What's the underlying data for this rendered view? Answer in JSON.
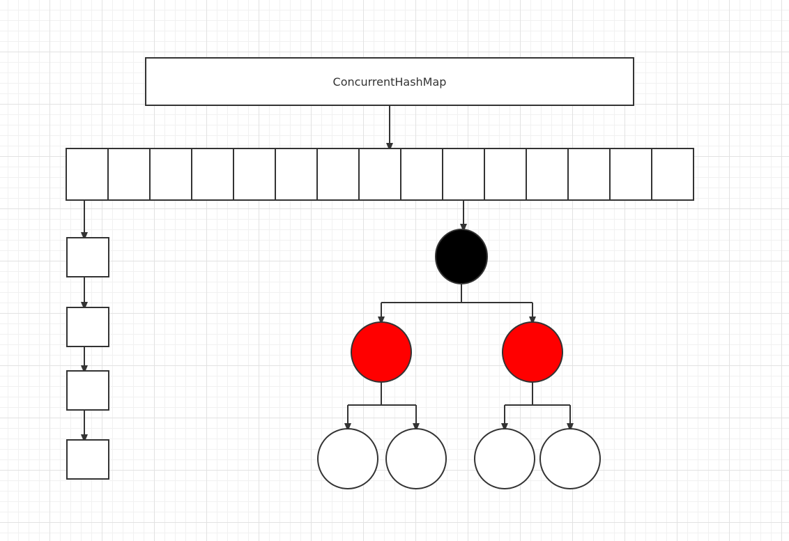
{
  "diagram": {
    "title": "ConcurrentHashMap",
    "colors": {
      "stroke": "#333333",
      "background": "#ffffff",
      "black_node": "#000000",
      "red_node": "#ff0000",
      "empty_node": "#ffffff"
    },
    "array": {
      "bucket_count": 15
    },
    "linked_list": {
      "node_count": 4
    },
    "red_black_tree": {
      "root": {
        "color": "black"
      },
      "children": [
        {
          "color": "red",
          "children": [
            {
              "color": "white"
            },
            {
              "color": "white"
            }
          ]
        },
        {
          "color": "red",
          "children": [
            {
              "color": "white"
            },
            {
              "color": "white"
            }
          ]
        }
      ]
    }
  }
}
